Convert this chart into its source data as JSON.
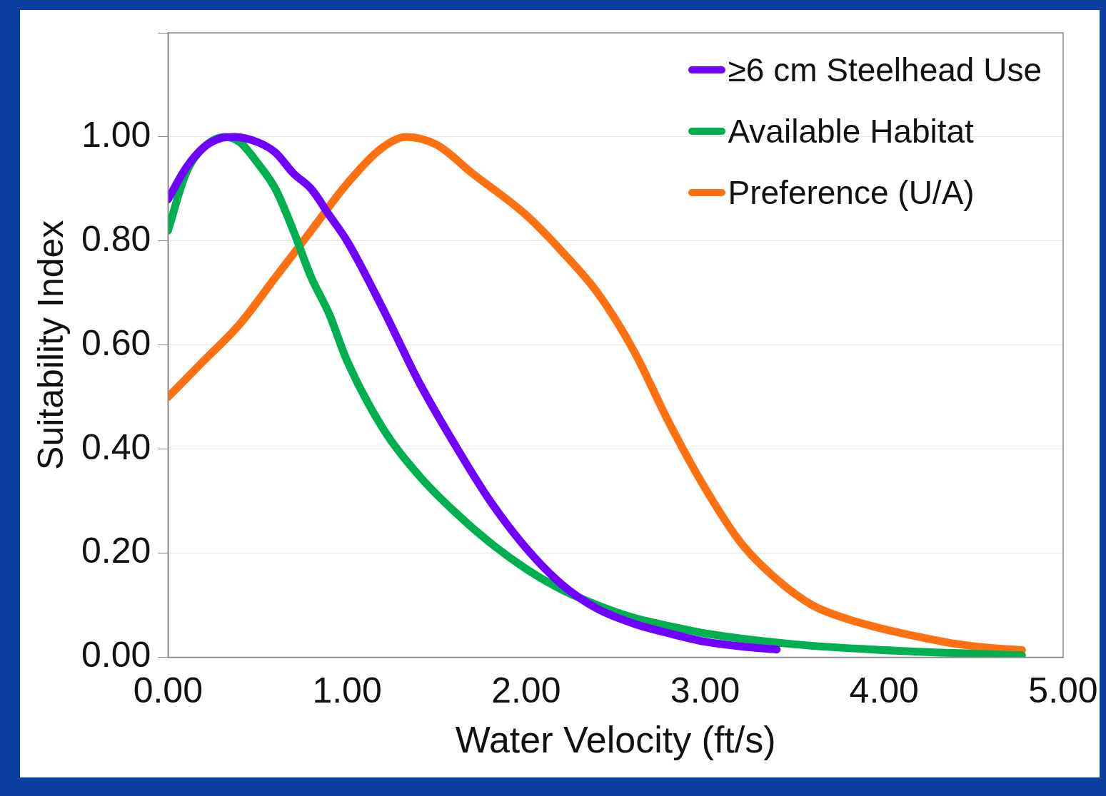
{
  "chart_data": {
    "type": "line",
    "xlabel": "Water Velocity (ft/s)",
    "ylabel": "Suitability Index",
    "xlim": [
      0,
      5
    ],
    "ylim": [
      0,
      1.2
    ],
    "xticks": [
      {
        "value": 0,
        "label": "0.00"
      },
      {
        "value": 1,
        "label": "1.00"
      },
      {
        "value": 2,
        "label": "2.00"
      },
      {
        "value": 3,
        "label": "3.00"
      },
      {
        "value": 4,
        "label": "4.00"
      },
      {
        "value": 5,
        "label": "5.00"
      }
    ],
    "yticks": [
      {
        "value": 0,
        "label": "0.00"
      },
      {
        "value": 0.2,
        "label": "0.20"
      },
      {
        "value": 0.4,
        "label": "0.40"
      },
      {
        "value": 0.6,
        "label": "0.60"
      },
      {
        "value": 0.8,
        "label": "0.80"
      },
      {
        "value": 1,
        "label": "1.00"
      },
      {
        "value": 1.2,
        "label": null
      }
    ],
    "grid": "y",
    "legend": "top right",
    "marker": "none",
    "line_style": "solid",
    "series": [
      {
        "name": "≥6 cm Steelhead Use",
        "color": "#7000ff",
        "x": [
          0,
          0.1,
          0.2,
          0.3,
          0.37,
          0.5,
          0.6,
          0.7,
          0.8,
          0.9,
          1.0,
          1.2,
          1.4,
          1.6,
          1.8,
          2.0,
          2.2,
          2.4,
          2.6,
          2.8,
          3.0,
          3.2,
          3.4
        ],
        "values": [
          0.88,
          0.94,
          0.98,
          0.998,
          1.0,
          0.99,
          0.97,
          0.93,
          0.9,
          0.85,
          0.8,
          0.67,
          0.53,
          0.41,
          0.3,
          0.21,
          0.14,
          0.093,
          0.065,
          0.046,
          0.03,
          0.021,
          0.015
        ]
      },
      {
        "name": "Available Habitat",
        "color": "#00b050",
        "x": [
          0,
          0.1,
          0.2,
          0.32,
          0.4,
          0.5,
          0.6,
          0.7,
          0.8,
          0.9,
          1.0,
          1.2,
          1.4,
          1.6,
          1.8,
          2.0,
          2.2,
          2.4,
          2.6,
          2.8,
          3.0,
          3.5,
          4.0,
          4.5,
          4.77
        ],
        "values": [
          0.82,
          0.93,
          0.98,
          1.0,
          0.99,
          0.95,
          0.9,
          0.82,
          0.73,
          0.66,
          0.57,
          0.44,
          0.35,
          0.28,
          0.22,
          0.17,
          0.13,
          0.1,
          0.076,
          0.06,
          0.046,
          0.025,
          0.014,
          0.007,
          0.004
        ]
      },
      {
        "name": "Preference (U/A)",
        "color": "#ff7010",
        "x": [
          0,
          0.2,
          0.4,
          0.6,
          0.8,
          1.0,
          1.2,
          1.33,
          1.5,
          1.7,
          2.0,
          2.2,
          2.4,
          2.6,
          2.8,
          3.0,
          3.2,
          3.4,
          3.6,
          3.8,
          4.0,
          4.2,
          4.4,
          4.6,
          4.77
        ],
        "values": [
          0.5,
          0.57,
          0.64,
          0.73,
          0.82,
          0.91,
          0.98,
          1.0,
          0.985,
          0.93,
          0.85,
          0.78,
          0.7,
          0.59,
          0.45,
          0.325,
          0.22,
          0.15,
          0.1,
          0.073,
          0.054,
          0.039,
          0.026,
          0.018,
          0.014
        ]
      }
    ]
  }
}
